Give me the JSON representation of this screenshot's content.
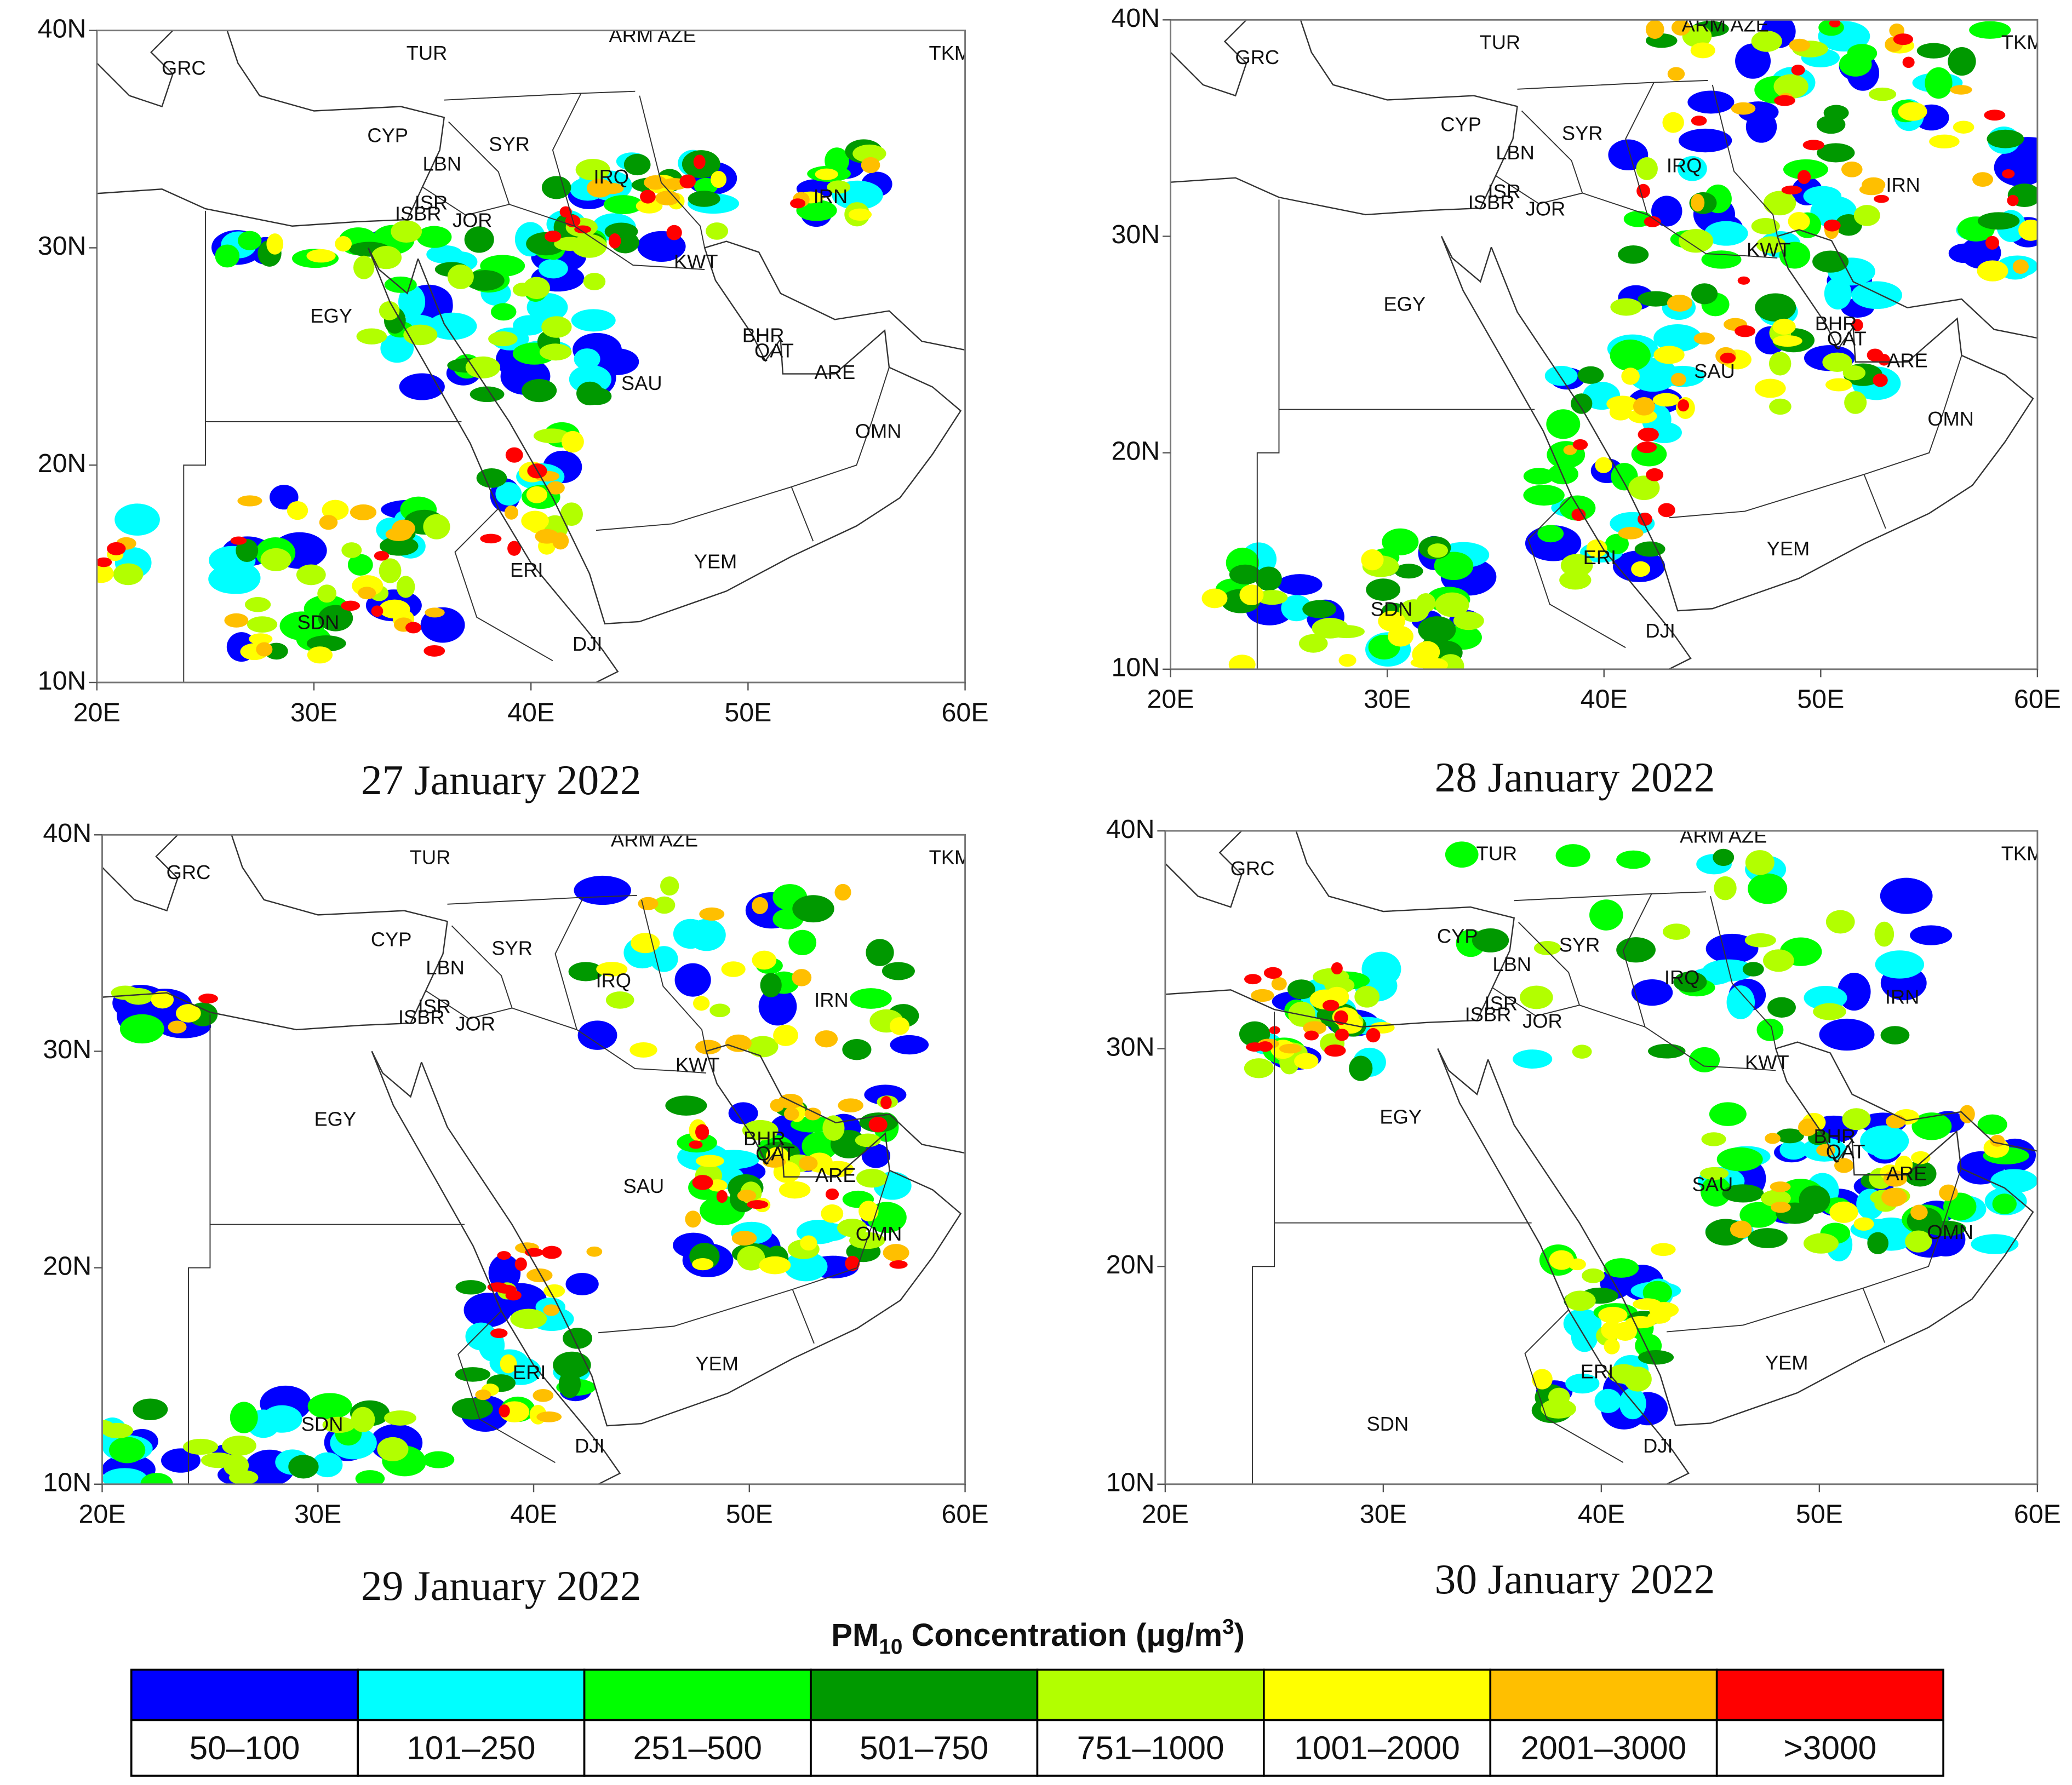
{
  "panels": [
    {
      "date": "27 January 2022"
    },
    {
      "date": "28 January 2022"
    },
    {
      "date": "29 January 2022"
    },
    {
      "date": "30 January 2022"
    }
  ],
  "axes": {
    "lat_ticks": [
      {
        "value": 40,
        "label": "40N"
      },
      {
        "value": 30,
        "label": "30N"
      },
      {
        "value": 20,
        "label": "20N"
      },
      {
        "value": 10,
        "label": "10N"
      }
    ],
    "lon_ticks": [
      {
        "value": 20,
        "label": "20E"
      },
      {
        "value": 30,
        "label": "30E"
      },
      {
        "value": 40,
        "label": "40E"
      },
      {
        "value": 50,
        "label": "50E"
      },
      {
        "value": 60,
        "label": "60E"
      }
    ]
  },
  "countries": [
    {
      "name": "GRC",
      "lon": 24,
      "lat": 38.2
    },
    {
      "name": "TUR",
      "lon": 35.2,
      "lat": 38.9
    },
    {
      "name": "ARM AZE",
      "lon": 45.6,
      "lat": 39.7
    },
    {
      "name": "TKM",
      "lon": 59.3,
      "lat": 38.9
    },
    {
      "name": "CYP",
      "lon": 33.4,
      "lat": 35.1
    },
    {
      "name": "SYR",
      "lon": 39,
      "lat": 34.7
    },
    {
      "name": "LBN",
      "lon": 35.9,
      "lat": 33.8
    },
    {
      "name": "IRQ",
      "lon": 43.7,
      "lat": 33.2
    },
    {
      "name": "IRN",
      "lon": 53.8,
      "lat": 32.3
    },
    {
      "name": "ISR",
      "lon": 35.4,
      "lat": 32
    },
    {
      "name": "ISBR",
      "lon": 34.8,
      "lat": 31.5
    },
    {
      "name": "JOR",
      "lon": 37.3,
      "lat": 31.2
    },
    {
      "name": "KWT",
      "lon": 47.6,
      "lat": 29.3
    },
    {
      "name": "EGY",
      "lon": 30.8,
      "lat": 26.8
    },
    {
      "name": "BHR",
      "lon": 50.7,
      "lat": 25.9
    },
    {
      "name": "QAT",
      "lon": 51.2,
      "lat": 25.2
    },
    {
      "name": "ARE",
      "lon": 54,
      "lat": 24.2
    },
    {
      "name": "SAU",
      "lon": 45.1,
      "lat": 23.7
    },
    {
      "name": "OMN",
      "lon": 56,
      "lat": 21.5
    },
    {
      "name": "YEM",
      "lon": 48.5,
      "lat": 15.5
    },
    {
      "name": "ERI",
      "lon": 39.8,
      "lat": 15.1
    },
    {
      "name": "SDN",
      "lon": 30.2,
      "lat": 12.7
    },
    {
      "name": "DJI",
      "lon": 42.6,
      "lat": 11.7
    }
  ],
  "legend": {
    "title": {
      "pre": "PM",
      "sub": "10",
      "mid": " Concentration (μg/m",
      "sup": "3",
      "post": ")"
    },
    "bins": [
      {
        "label": "50–100",
        "color": "#0000ff"
      },
      {
        "label": "101–250",
        "color": "#00ffff"
      },
      {
        "label": "251–500",
        "color": "#00ff00"
      },
      {
        "label": "501–750",
        "color": "#009900"
      },
      {
        "label": "751–1000",
        "color": "#b2ff00"
      },
      {
        "label": "1001–2000",
        "color": "#ffff00"
      },
      {
        "label": "2001–3000",
        "color": "#ffbf00"
      },
      {
        "label": ">3000",
        "color": "#ff0000"
      }
    ]
  }
}
